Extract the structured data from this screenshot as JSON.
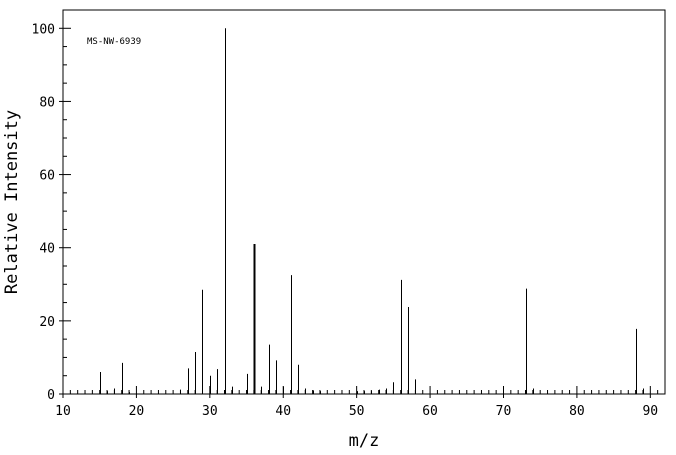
{
  "chart_data": {
    "type": "bar",
    "title": "",
    "annotation": "MS-NW-6939",
    "xlabel": "m/z",
    "ylabel": "Relative Intensity",
    "xlim": [
      10,
      92
    ],
    "ylim": [
      0,
      105
    ],
    "x_ticks_major": [
      10,
      20,
      30,
      40,
      50,
      60,
      70,
      80,
      90
    ],
    "y_ticks_major": [
      0,
      20,
      40,
      60,
      80,
      100
    ],
    "grid": false,
    "series": [
      {
        "peaks": [
          {
            "mz": 15,
            "intensity": 6
          },
          {
            "mz": 16,
            "intensity": 0.8
          },
          {
            "mz": 17,
            "intensity": 1.5
          },
          {
            "mz": 18,
            "intensity": 8.5
          },
          {
            "mz": 19,
            "intensity": 0.5
          },
          {
            "mz": 26,
            "intensity": 1.2
          },
          {
            "mz": 27,
            "intensity": 7
          },
          {
            "mz": 28,
            "intensity": 11.5
          },
          {
            "mz": 29,
            "intensity": 28.5
          },
          {
            "mz": 30,
            "intensity": 5
          },
          {
            "mz": 31,
            "intensity": 6.8
          },
          {
            "mz": 32,
            "intensity": 100
          },
          {
            "mz": 33,
            "intensity": 2
          },
          {
            "mz": 35,
            "intensity": 5.5
          },
          {
            "mz": 36,
            "intensity": 41
          },
          {
            "mz": 37,
            "intensity": 2
          },
          {
            "mz": 38,
            "intensity": 13.5
          },
          {
            "mz": 39,
            "intensity": 9.2
          },
          {
            "mz": 40,
            "intensity": 2
          },
          {
            "mz": 41,
            "intensity": 32.5
          },
          {
            "mz": 42,
            "intensity": 8
          },
          {
            "mz": 43,
            "intensity": 1.5
          },
          {
            "mz": 44,
            "intensity": 1
          },
          {
            "mz": 45,
            "intensity": 0.8
          },
          {
            "mz": 50,
            "intensity": 0.8
          },
          {
            "mz": 51,
            "intensity": 0.8
          },
          {
            "mz": 52,
            "intensity": 0.8
          },
          {
            "mz": 53,
            "intensity": 1.2
          },
          {
            "mz": 54,
            "intensity": 1.5
          },
          {
            "mz": 55,
            "intensity": 3.2
          },
          {
            "mz": 56,
            "intensity": 31.2
          },
          {
            "mz": 57,
            "intensity": 23.8
          },
          {
            "mz": 58,
            "intensity": 4
          },
          {
            "mz": 73,
            "intensity": 28.8
          },
          {
            "mz": 74,
            "intensity": 1.5
          },
          {
            "mz": 88,
            "intensity": 17.8
          },
          {
            "mz": 89,
            "intensity": 1.5
          }
        ]
      }
    ]
  }
}
